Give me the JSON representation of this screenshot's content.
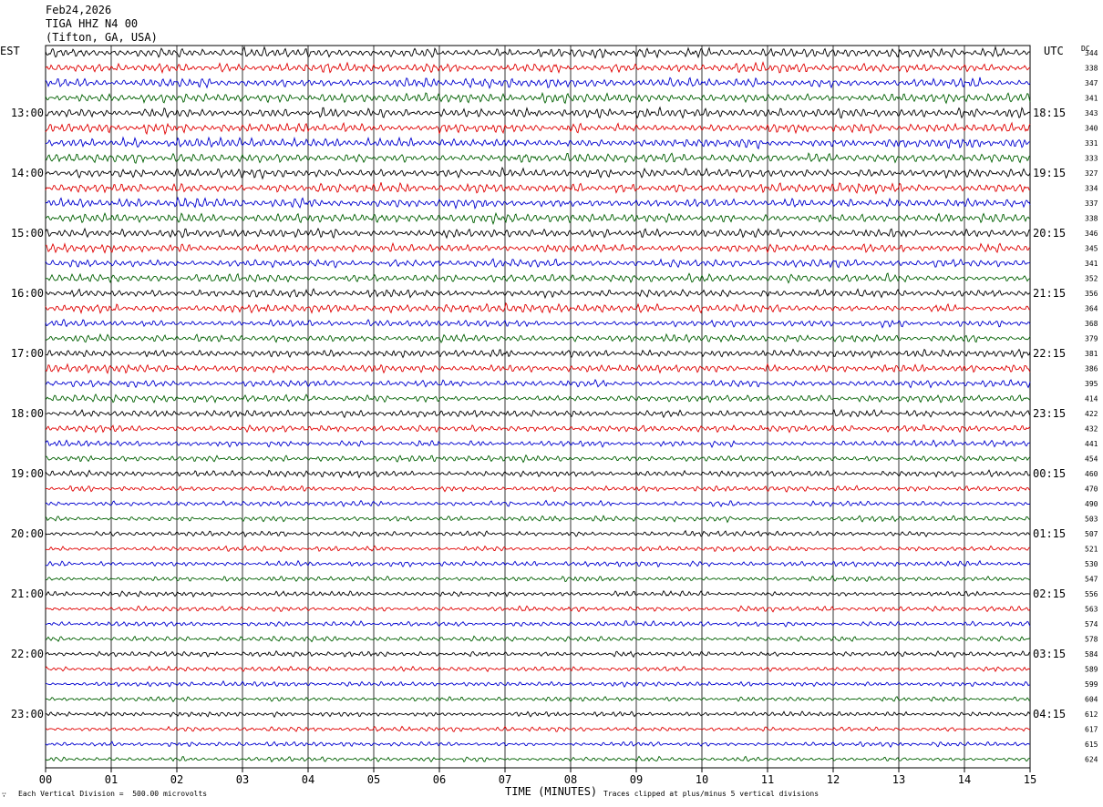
{
  "header": {
    "date": "Feb24,2026",
    "station": "TIGA HHZ N4 00",
    "location": "(Tifton, GA, USA)"
  },
  "left_timezone": "EST",
  "right_timezone": "UTC",
  "dc_label": "DC",
  "footer": {
    "scale_note": "Each Vertical Division =  500.00 microvolts",
    "clip_note": "Traces clipped at plus/minus 5 vertical divisions",
    "corner_mark": "∵"
  },
  "colors": {
    "trace_cycle": [
      "#000000",
      "#e00000",
      "#0000d0",
      "#006000"
    ],
    "grid": "#000000",
    "background": "#ffffff"
  },
  "chart_data": {
    "type": "line",
    "subtype": "helicorder",
    "title": "TIGA HHZ N4 00",
    "xlabel": "TIME (MINUTES)",
    "ylabel": "",
    "x_ticks": [
      "00",
      "01",
      "02",
      "03",
      "04",
      "05",
      "06",
      "07",
      "08",
      "09",
      "10",
      "11",
      "12",
      "13",
      "14",
      "15"
    ],
    "xlim": [
      0,
      15
    ],
    "traces_per_hour": 4,
    "trace_count": 48,
    "left_hour_labels": [
      "13:00",
      "14:00",
      "15:00",
      "16:00",
      "17:00",
      "18:00",
      "19:00",
      "20:00",
      "21:00",
      "22:00",
      "23:00"
    ],
    "right_hour_labels": [
      "18:15",
      "19:15",
      "20:15",
      "21:15",
      "22:15",
      "23:15",
      "00:15",
      "01:15",
      "02:15",
      "03:15",
      "04:15"
    ],
    "hour_label_first_trace": 4,
    "dc_offsets": [
      344,
      338,
      347,
      341,
      343,
      340,
      331,
      333,
      327,
      334,
      337,
      338,
      346,
      345,
      341,
      352,
      356,
      364,
      368,
      379,
      381,
      386,
      395,
      414,
      422,
      432,
      441,
      454,
      460,
      470,
      490,
      503,
      507,
      521,
      530,
      547,
      556,
      563,
      574,
      578,
      584,
      589,
      599,
      604,
      612,
      617,
      615,
      624
    ],
    "amplitude_profile": [
      1.0,
      1.0,
      1.0,
      1.0,
      1.0,
      1.0,
      1.0,
      1.0,
      1.0,
      1.0,
      1.0,
      1.0,
      0.95,
      0.9,
      0.9,
      0.9,
      0.85,
      0.85,
      0.8,
      0.8,
      0.8,
      0.8,
      0.75,
      0.75,
      0.7,
      0.7,
      0.65,
      0.65,
      0.65,
      0.6,
      0.6,
      0.6,
      0.6,
      0.55,
      0.55,
      0.55,
      0.55,
      0.55,
      0.55,
      0.55,
      0.55,
      0.5,
      0.5,
      0.5,
      0.5,
      0.5,
      0.5,
      0.5
    ]
  }
}
